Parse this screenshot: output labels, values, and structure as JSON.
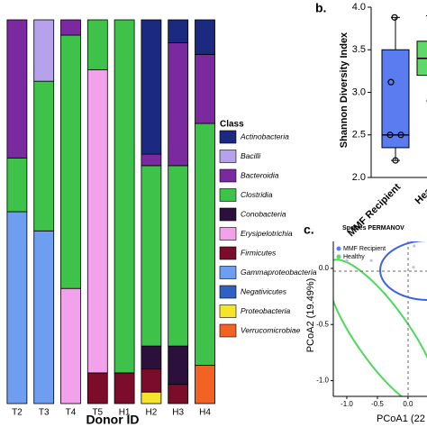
{
  "chart_data": [
    {
      "type": "stacked-bar",
      "xlabel": "Donor ID",
      "legend_title": "Class",
      "ylim": [
        0,
        100
      ],
      "categories": [
        "T2",
        "T3",
        "T4",
        "T5",
        "H1",
        "H2",
        "H3",
        "H4"
      ],
      "series": [
        {
          "name": "Actinobacteria",
          "color": "#1b2a80",
          "values": [
            null,
            null,
            null,
            null,
            null,
            35,
            6,
            9
          ]
        },
        {
          "name": "Bacilli",
          "color": "#b5a2ea",
          "values": [
            null,
            16,
            null,
            null,
            null,
            null,
            null,
            null
          ]
        },
        {
          "name": "Bacteroidia",
          "color": "#7a2a9e",
          "values": [
            36,
            null,
            4,
            null,
            null,
            3,
            32,
            18
          ]
        },
        {
          "name": "Clostridia",
          "color": "#3fc24a",
          "values": [
            14,
            39,
            66,
            13,
            92,
            47,
            47,
            63
          ]
        },
        {
          "name": "Conobacteria",
          "color": "#2b103b",
          "values": [
            null,
            null,
            null,
            null,
            null,
            6,
            10,
            null
          ]
        },
        {
          "name": "Erysipelotrichia",
          "color": "#f2a2ea",
          "values": [
            null,
            null,
            30,
            79,
            null,
            null,
            null,
            null
          ]
        },
        {
          "name": "Firmicutes",
          "color": "#7b0c2a",
          "values": [
            null,
            null,
            null,
            8,
            8,
            6,
            5,
            null
          ]
        },
        {
          "name": "Gammaproteobacteria",
          "color": "#6d9ef0",
          "values": [
            50,
            45,
            null,
            null,
            null,
            null,
            null,
            null
          ]
        },
        {
          "name": "Negativicutes",
          "color": "#2f62c0",
          "values": [
            null,
            null,
            null,
            null,
            null,
            null,
            null,
            null
          ]
        },
        {
          "name": "Proteobacteria",
          "color": "#f5e52a",
          "values": [
            null,
            null,
            null,
            null,
            null,
            3,
            null,
            null
          ]
        },
        {
          "name": "Verrucomicrobiae",
          "color": "#f26222",
          "values": [
            null,
            null,
            null,
            null,
            null,
            null,
            null,
            10
          ]
        }
      ]
    },
    {
      "type": "box",
      "panel_label": "b.",
      "ylabel": "Shannon Diversity Index",
      "ylim": [
        2,
        4
      ],
      "yticks": [
        {
          "value": 2,
          "label": "2.0"
        },
        2.5,
        {
          "value": 3,
          "label": "3.0"
        },
        3.5,
        {
          "value": 4,
          "label": "4.0"
        }
      ],
      "categories": [
        "MMF Recipient",
        "Healt"
      ],
      "boxes": [
        {
          "color": "#5b7cf0",
          "min": 2.2,
          "q1": 2.35,
          "median": 2.5,
          "q3": 3.5,
          "max": 3.88,
          "points": [
            3.88,
            3.12,
            2.5,
            2.5,
            2.2
          ]
        },
        {
          "color": "#5fd86a",
          "min": 2.9,
          "q1": 3.2,
          "median": 3.4,
          "q3": 3.6,
          "max": 3.9,
          "points": []
        }
      ]
    },
    {
      "type": "scatter",
      "panel_label": "c.",
      "title": "Species PERMANOV",
      "xlabel": "PCoA1 (22",
      "ylabel": "PCoA2 (19.49%)",
      "xlim": [
        -1.22,
        0.31
      ],
      "ylim": [
        -1.14,
        0.24
      ],
      "xticks": [
        {
          "value": -1,
          "label": "-1.0"
        },
        -0.5,
        {
          "value": 0,
          "label": "0.0"
        }
      ],
      "yticks": [
        {
          "value": -1,
          "label": "-1.0"
        },
        -0.5,
        {
          "value": 0,
          "label": "0.0"
        }
      ],
      "series": [
        {
          "name": "MMF Recipient",
          "color": "#5b7cf0",
          "x": [
            0.09,
            0.1
          ],
          "y": [
            0.01,
            0.2
          ]
        },
        {
          "name": "Healthy",
          "color": "#5fd86a",
          "x": [
            -1.0,
            -0.6
          ],
          "y": [
            0.07,
            0.07
          ]
        }
      ]
    }
  ]
}
